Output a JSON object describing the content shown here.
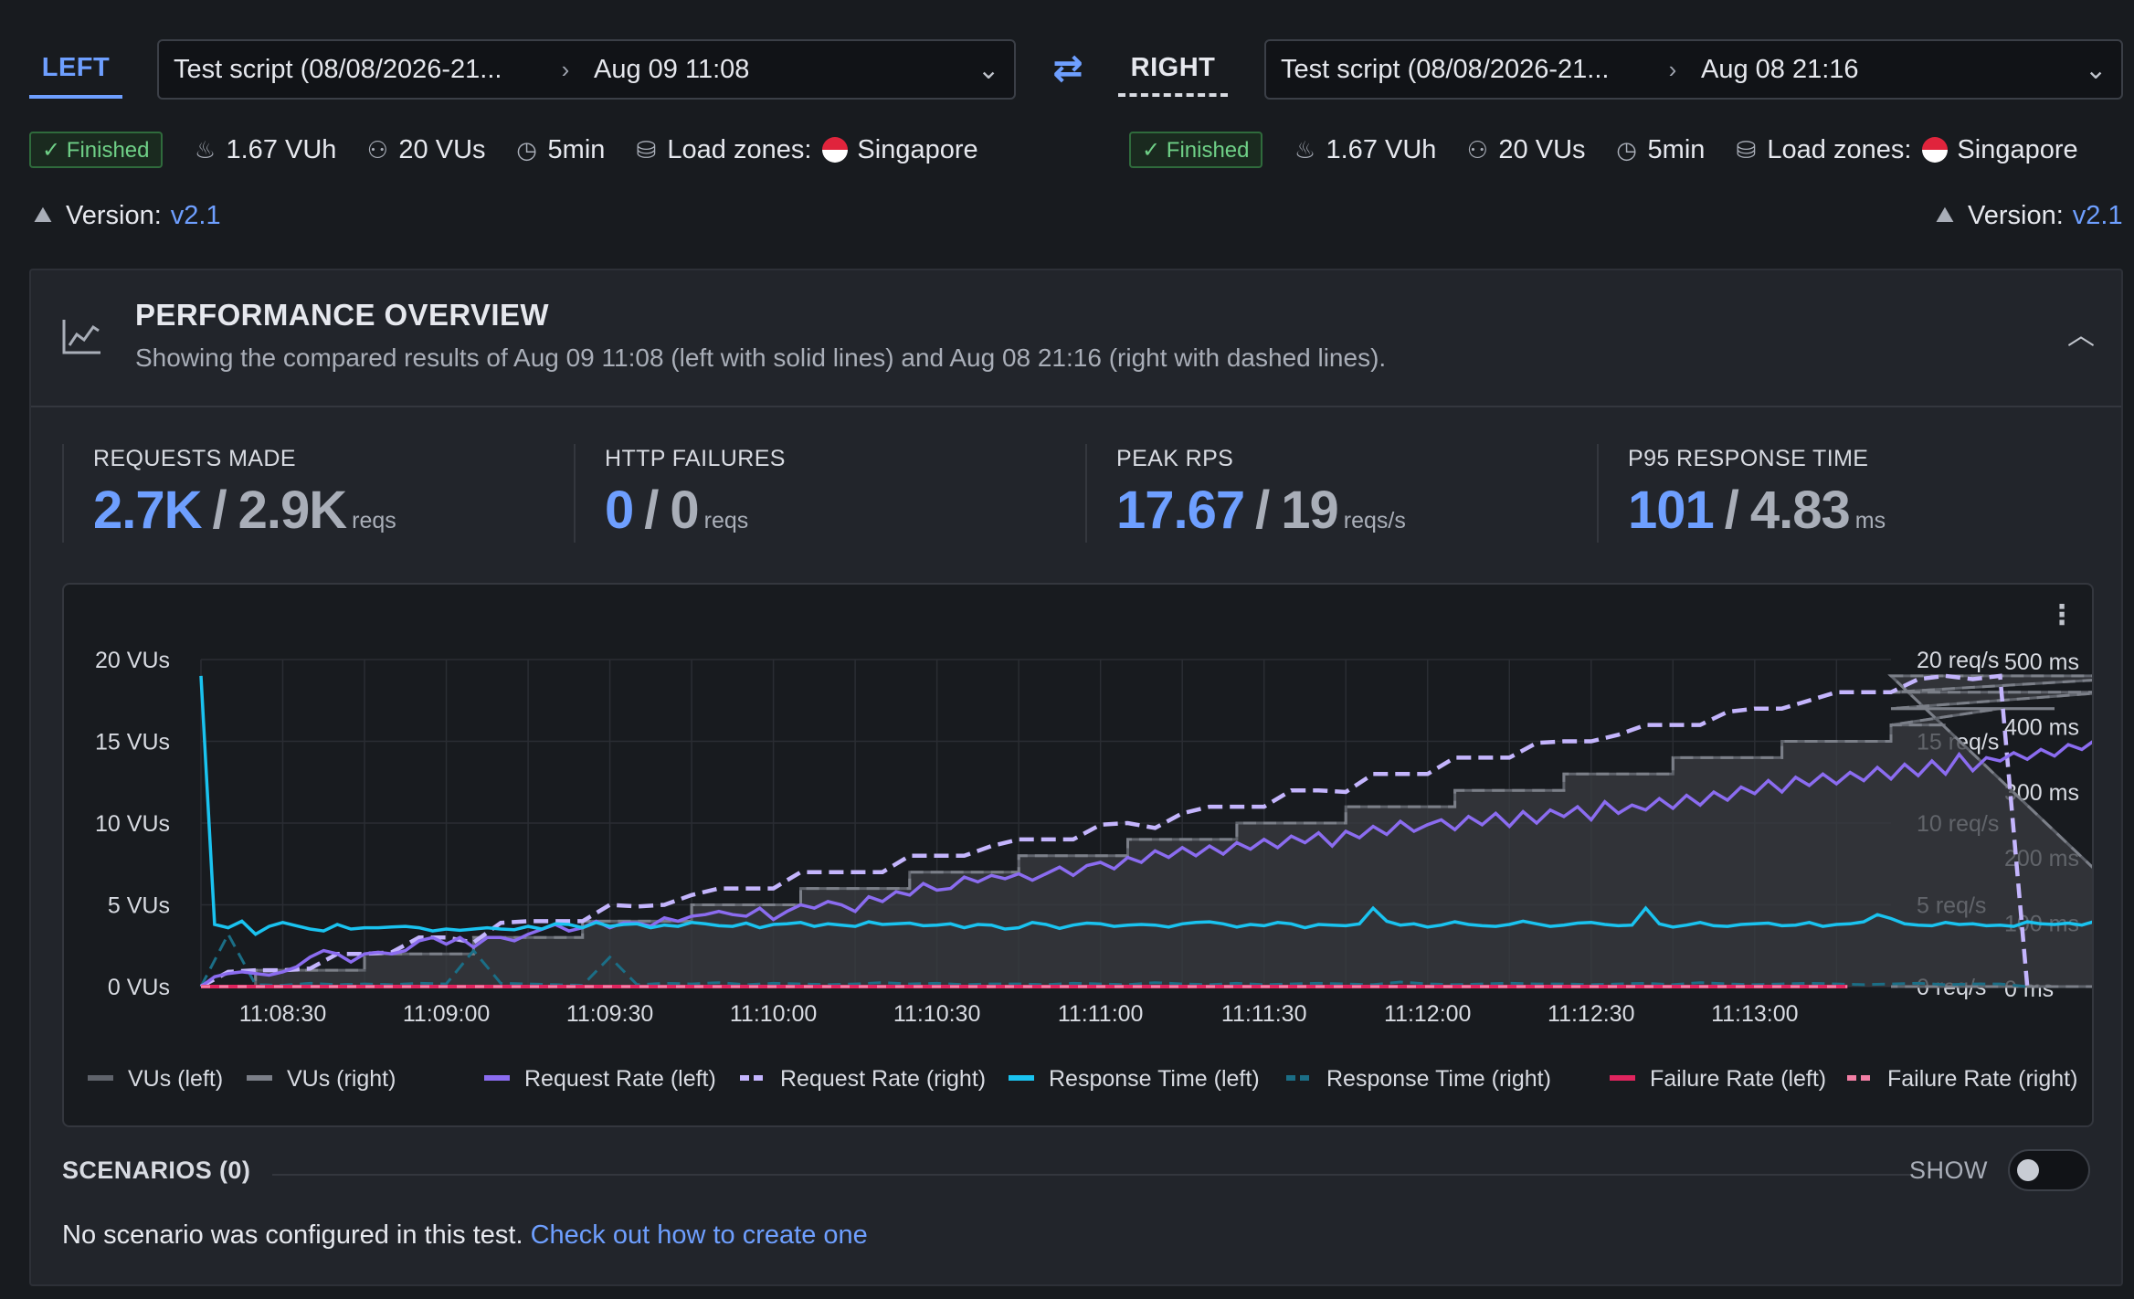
{
  "compare": {
    "left_tab": "LEFT",
    "right_tab": "RIGHT",
    "left_run": {
      "script": "Test script (08/08/2026-21...",
      "date": "Aug 09 11:08",
      "status": "Finished",
      "vuh": "1.67 VUh",
      "vus": "20 VUs",
      "duration": "5min",
      "load_zones_label": "Load zones:",
      "load_zone": "Singapore",
      "version_label": "Version:",
      "version": "v2.1"
    },
    "right_run": {
      "script": "Test script (08/08/2026-21...",
      "date": "Aug 08 21:16",
      "status": "Finished",
      "vuh": "1.67 VUh",
      "vus": "20 VUs",
      "duration": "5min",
      "load_zones_label": "Load zones:",
      "load_zone": "Singapore",
      "version_label": "Version:",
      "version": "v2.1"
    }
  },
  "overview": {
    "title": "PERFORMANCE OVERVIEW",
    "subtitle": "Showing the compared results of Aug 09 11:08 (left with solid lines) and Aug 08 21:16 (right with dashed lines).",
    "stats": [
      {
        "label": "REQUESTS MADE",
        "left": "2.7K",
        "right": "2.9K",
        "unit": "reqs"
      },
      {
        "label": "HTTP FAILURES",
        "left": "0",
        "right": "0",
        "unit": "reqs"
      },
      {
        "label": "PEAK RPS",
        "left": "17.67",
        "right": "19",
        "unit": "reqs/s"
      },
      {
        "label": "P95 RESPONSE TIME",
        "left": "101",
        "right": "4.83",
        "unit": "ms"
      }
    ]
  },
  "scenarios": {
    "title": "SCENARIOS (0)",
    "show_label": "SHOW",
    "empty_text": "No scenario was configured in this test.",
    "link_text": "Check out how to create one"
  },
  "colors": {
    "accent": "#6e9fff",
    "vus": "#5f636b",
    "request_rate_left": "#8b6cf0",
    "request_rate_right": "#c4b5fd",
    "response_time_left": "#1ac3f0",
    "response_time_right": "#1b6e86",
    "failure_left": "#e0245e",
    "failure_right": "#f27fa5",
    "finished": "#6fd087"
  },
  "chart_data": {
    "type": "line",
    "x_ticks": [
      "11:08:30",
      "11:09:00",
      "11:09:30",
      "11:10:00",
      "11:10:30",
      "11:11:00",
      "11:11:30",
      "11:12:00",
      "11:12:30",
      "11:13:00"
    ],
    "x_range": [
      "11:08:15",
      "11:13:25"
    ],
    "y_left": {
      "ticks": [
        "0 VUs",
        "5 VUs",
        "10 VUs",
        "15 VUs",
        "20 VUs"
      ],
      "range": [
        0,
        20
      ]
    },
    "y_right_rate": {
      "ticks": [
        "0 req/s",
        "5 req/s",
        "10 req/s",
        "15 req/s",
        "20 req/s"
      ],
      "range": [
        0,
        20
      ]
    },
    "y_right_time": {
      "ticks": [
        "0 ms",
        "100 ms",
        "200 ms",
        "300 ms",
        "400 ms",
        "500 ms"
      ],
      "range": [
        0,
        500
      ]
    },
    "grid": true,
    "legend_position": "bottom",
    "legend": [
      "VUs (left)",
      "VUs (right)",
      "Request Rate (left)",
      "Request Rate (right)",
      "Response Time (left)",
      "Response Time (right)",
      "Failure Rate (left)",
      "Failure Rate (right)"
    ],
    "series": [
      {
        "name": "VUs (left)",
        "axis": "vus",
        "t_start": 0,
        "step": 10,
        "values": [
          0,
          1,
          1,
          2,
          2,
          3,
          3,
          4,
          4,
          5,
          5,
          6,
          6,
          7,
          7,
          8,
          8,
          9,
          9,
          10,
          10,
          11,
          11,
          12,
          12,
          13,
          13,
          14,
          14,
          15,
          15,
          16,
          16,
          17,
          17,
          18,
          19,
          0
        ]
      },
      {
        "name": "VUs (right)",
        "axis": "vus",
        "t_start": 0,
        "step": 10,
        "values": [
          0,
          1,
          1,
          2,
          2,
          3,
          3,
          4,
          4,
          5,
          5,
          6,
          6,
          7,
          7,
          8,
          8,
          9,
          9,
          10,
          10,
          11,
          11,
          12,
          12,
          13,
          13,
          14,
          14,
          15,
          15,
          16,
          16,
          17,
          17,
          18,
          19,
          0
        ]
      },
      {
        "name": "Request Rate (left)",
        "axis": "rate",
        "t_start": 0,
        "step": 2.5,
        "values": [
          0,
          0.6,
          0.8,
          0.9,
          0.8,
          0.7,
          0.9,
          1.2,
          1.8,
          2.2,
          2.0,
          1.5,
          2.0,
          2.1,
          2.0,
          2.2,
          2.8,
          3.0,
          2.6,
          3.0,
          2.4,
          3.0,
          3.0,
          2.8,
          3.2,
          3.5,
          3.8,
          3.4,
          3.6,
          4.0,
          3.6,
          3.9,
          3.9,
          3.7,
          4.2,
          4.0,
          4.3,
          4.4,
          4.6,
          4.4,
          4.3,
          4.8,
          4.1,
          4.6,
          5.0,
          4.8,
          5.2,
          5.0,
          4.6,
          5.5,
          5.2,
          5.8,
          5.6,
          6.3,
          5.9,
          6.0,
          6.7,
          6.4,
          6.8,
          6.6,
          6.9,
          6.5,
          6.9,
          7.3,
          6.8,
          7.4,
          7.6,
          7.2,
          7.9,
          7.6,
          8.3,
          7.9,
          8.5,
          8.0,
          8.6,
          8.1,
          8.8,
          8.4,
          9.0,
          8.5,
          9.2,
          8.8,
          9.4,
          8.6,
          9.5,
          9.1,
          9.8,
          9.3,
          10.1,
          9.5,
          9.9,
          10.2,
          9.6,
          10.4,
          9.9,
          10.6,
          9.8,
          10.7,
          10.0,
          10.8,
          10.4,
          11.0,
          10.2,
          11.3,
          10.6,
          11.1,
          10.8,
          11.5,
          10.9,
          11.7,
          11.1,
          11.9,
          11.4,
          12.2,
          11.8,
          12.6,
          11.9,
          12.8,
          12.3,
          13.0,
          12.4,
          13.1,
          12.6,
          13.4,
          12.7,
          13.6,
          12.9,
          13.8,
          13.0,
          14.2,
          13.2,
          14.0,
          13.8,
          14.3,
          13.9,
          14.5,
          14.1,
          14.8,
          14.5,
          15.1,
          14.6,
          15.5,
          14.9,
          15.6,
          15.2,
          15.8,
          15.0,
          16.1,
          15.6,
          16.5,
          15.5,
          16.7,
          16.3,
          16.6,
          16.2,
          16.8,
          16.5,
          17.3,
          17.1,
          17.4,
          17.4,
          17.0,
          17.67,
          17.67,
          17.67,
          17.67,
          17.67,
          17.67,
          17.67,
          14.5,
          9.9,
          0.3
        ]
      },
      {
        "name": "Request Rate (right)",
        "axis": "rate",
        "t_start": 0,
        "step": 5,
        "values": [
          0,
          0.9,
          1.0,
          1.0,
          1.1,
          2.0,
          2.0,
          2.1,
          3.0,
          3.0,
          2.7,
          3.9,
          4.0,
          4.0,
          4.0,
          5.0,
          4.9,
          5.0,
          5.6,
          6.0,
          6.0,
          6.0,
          7.0,
          7.0,
          7.0,
          7.0,
          8.0,
          8.0,
          8.0,
          8.6,
          9.0,
          9.0,
          9.0,
          9.9,
          10.0,
          9.7,
          10.6,
          11.0,
          11.0,
          11.0,
          12.0,
          12.0,
          11.9,
          13.0,
          13.0,
          13.0,
          14.0,
          14.0,
          14.0,
          14.9,
          15.0,
          15.0,
          15.4,
          16.0,
          16.0,
          16.0,
          16.8,
          17.0,
          17.0,
          17.5,
          18.0,
          18.0,
          18.0,
          18.8,
          19.0,
          18.8,
          19.0,
          0
        ]
      },
      {
        "name": "Response Time (left)",
        "axis": "time",
        "t_start": 0,
        "step": 2.5,
        "values": [
          475,
          95,
          90,
          100,
          80,
          92,
          98,
          93,
          88,
          85,
          95,
          88,
          90,
          90,
          91,
          92,
          90,
          85,
          88,
          86,
          88,
          90,
          88,
          87,
          92,
          88,
          96,
          95,
          90,
          98,
          92,
          95,
          96,
          90,
          94,
          92,
          98,
          96,
          93,
          92,
          97,
          90,
          95,
          96,
          98,
          92,
          96,
          94,
          92,
          99,
          95,
          96,
          97,
          93,
          94,
          96,
          90,
          95,
          94,
          88,
          90,
          98,
          95,
          89,
          94,
          97,
          96,
          92,
          94,
          95,
          94,
          91,
          96,
          98,
          99,
          96,
          91,
          95,
          93,
          98,
          96,
          90,
          95,
          94,
          93,
          96,
          120,
          100,
          94,
          96,
          91,
          94,
          99,
          95,
          93,
          92,
          95,
          100,
          96,
          92,
          94,
          97,
          98,
          95,
          93,
          94,
          120,
          96,
          91,
          94,
          98,
          93,
          92,
          95,
          96,
          97,
          93,
          94,
          98,
          92,
          95,
          96,
          99,
          110,
          104,
          96,
          94,
          93,
          98,
          95,
          96,
          93,
          94,
          92,
          99,
          96,
          95,
          97,
          94,
          100,
          97,
          92,
          110,
          96,
          94,
          112,
          100,
          93,
          95,
          94,
          98,
          99,
          96,
          102,
          97,
          100,
          96,
          94,
          92,
          98,
          104,
          96,
          95,
          92,
          97,
          95,
          92,
          100,
          94,
          98,
          105,
          96,
          99,
          92,
          94,
          98,
          94,
          100,
          96,
          98,
          93,
          96,
          95,
          92,
          110,
          120,
          96,
          104,
          93,
          94,
          98,
          96,
          101,
          105,
          96,
          97,
          98,
          94,
          93,
          103,
          96,
          170,
          108,
          96,
          101,
          95,
          98,
          99,
          96,
          104,
          100,
          96,
          97,
          99,
          95,
          98,
          97,
          104,
          100,
          99,
          97,
          96,
          100,
          95,
          98,
          99,
          101,
          96,
          94,
          97,
          101,
          100,
          95,
          96,
          110,
          100,
          94,
          96,
          95,
          94,
          103
        ]
      },
      {
        "name": "Response Time (right)",
        "axis": "time",
        "t_start": 0,
        "step": 5,
        "values": [
          0,
          80,
          3,
          2,
          5,
          3,
          4,
          3,
          5,
          4,
          55,
          5,
          4,
          3,
          2,
          45,
          3,
          5,
          4,
          6,
          3,
          5,
          4,
          3,
          4,
          6,
          4,
          5,
          3,
          4,
          4,
          3,
          5,
          4,
          3,
          6,
          4,
          3,
          5,
          3,
          4,
          5,
          4,
          3,
          7,
          4,
          3,
          4,
          5,
          4,
          4,
          3,
          4,
          5,
          3,
          6,
          4,
          3,
          4,
          5,
          4,
          3,
          4,
          5,
          3,
          4,
          4,
          0
        ]
      },
      {
        "name": "Failure Rate (left)",
        "axis": "rate",
        "t_start": 0,
        "step": 300,
        "values": [
          0,
          0
        ]
      },
      {
        "name": "Failure Rate (right)",
        "axis": "rate",
        "t_start": 0,
        "step": 300,
        "values": [
          0,
          0
        ]
      }
    ]
  }
}
